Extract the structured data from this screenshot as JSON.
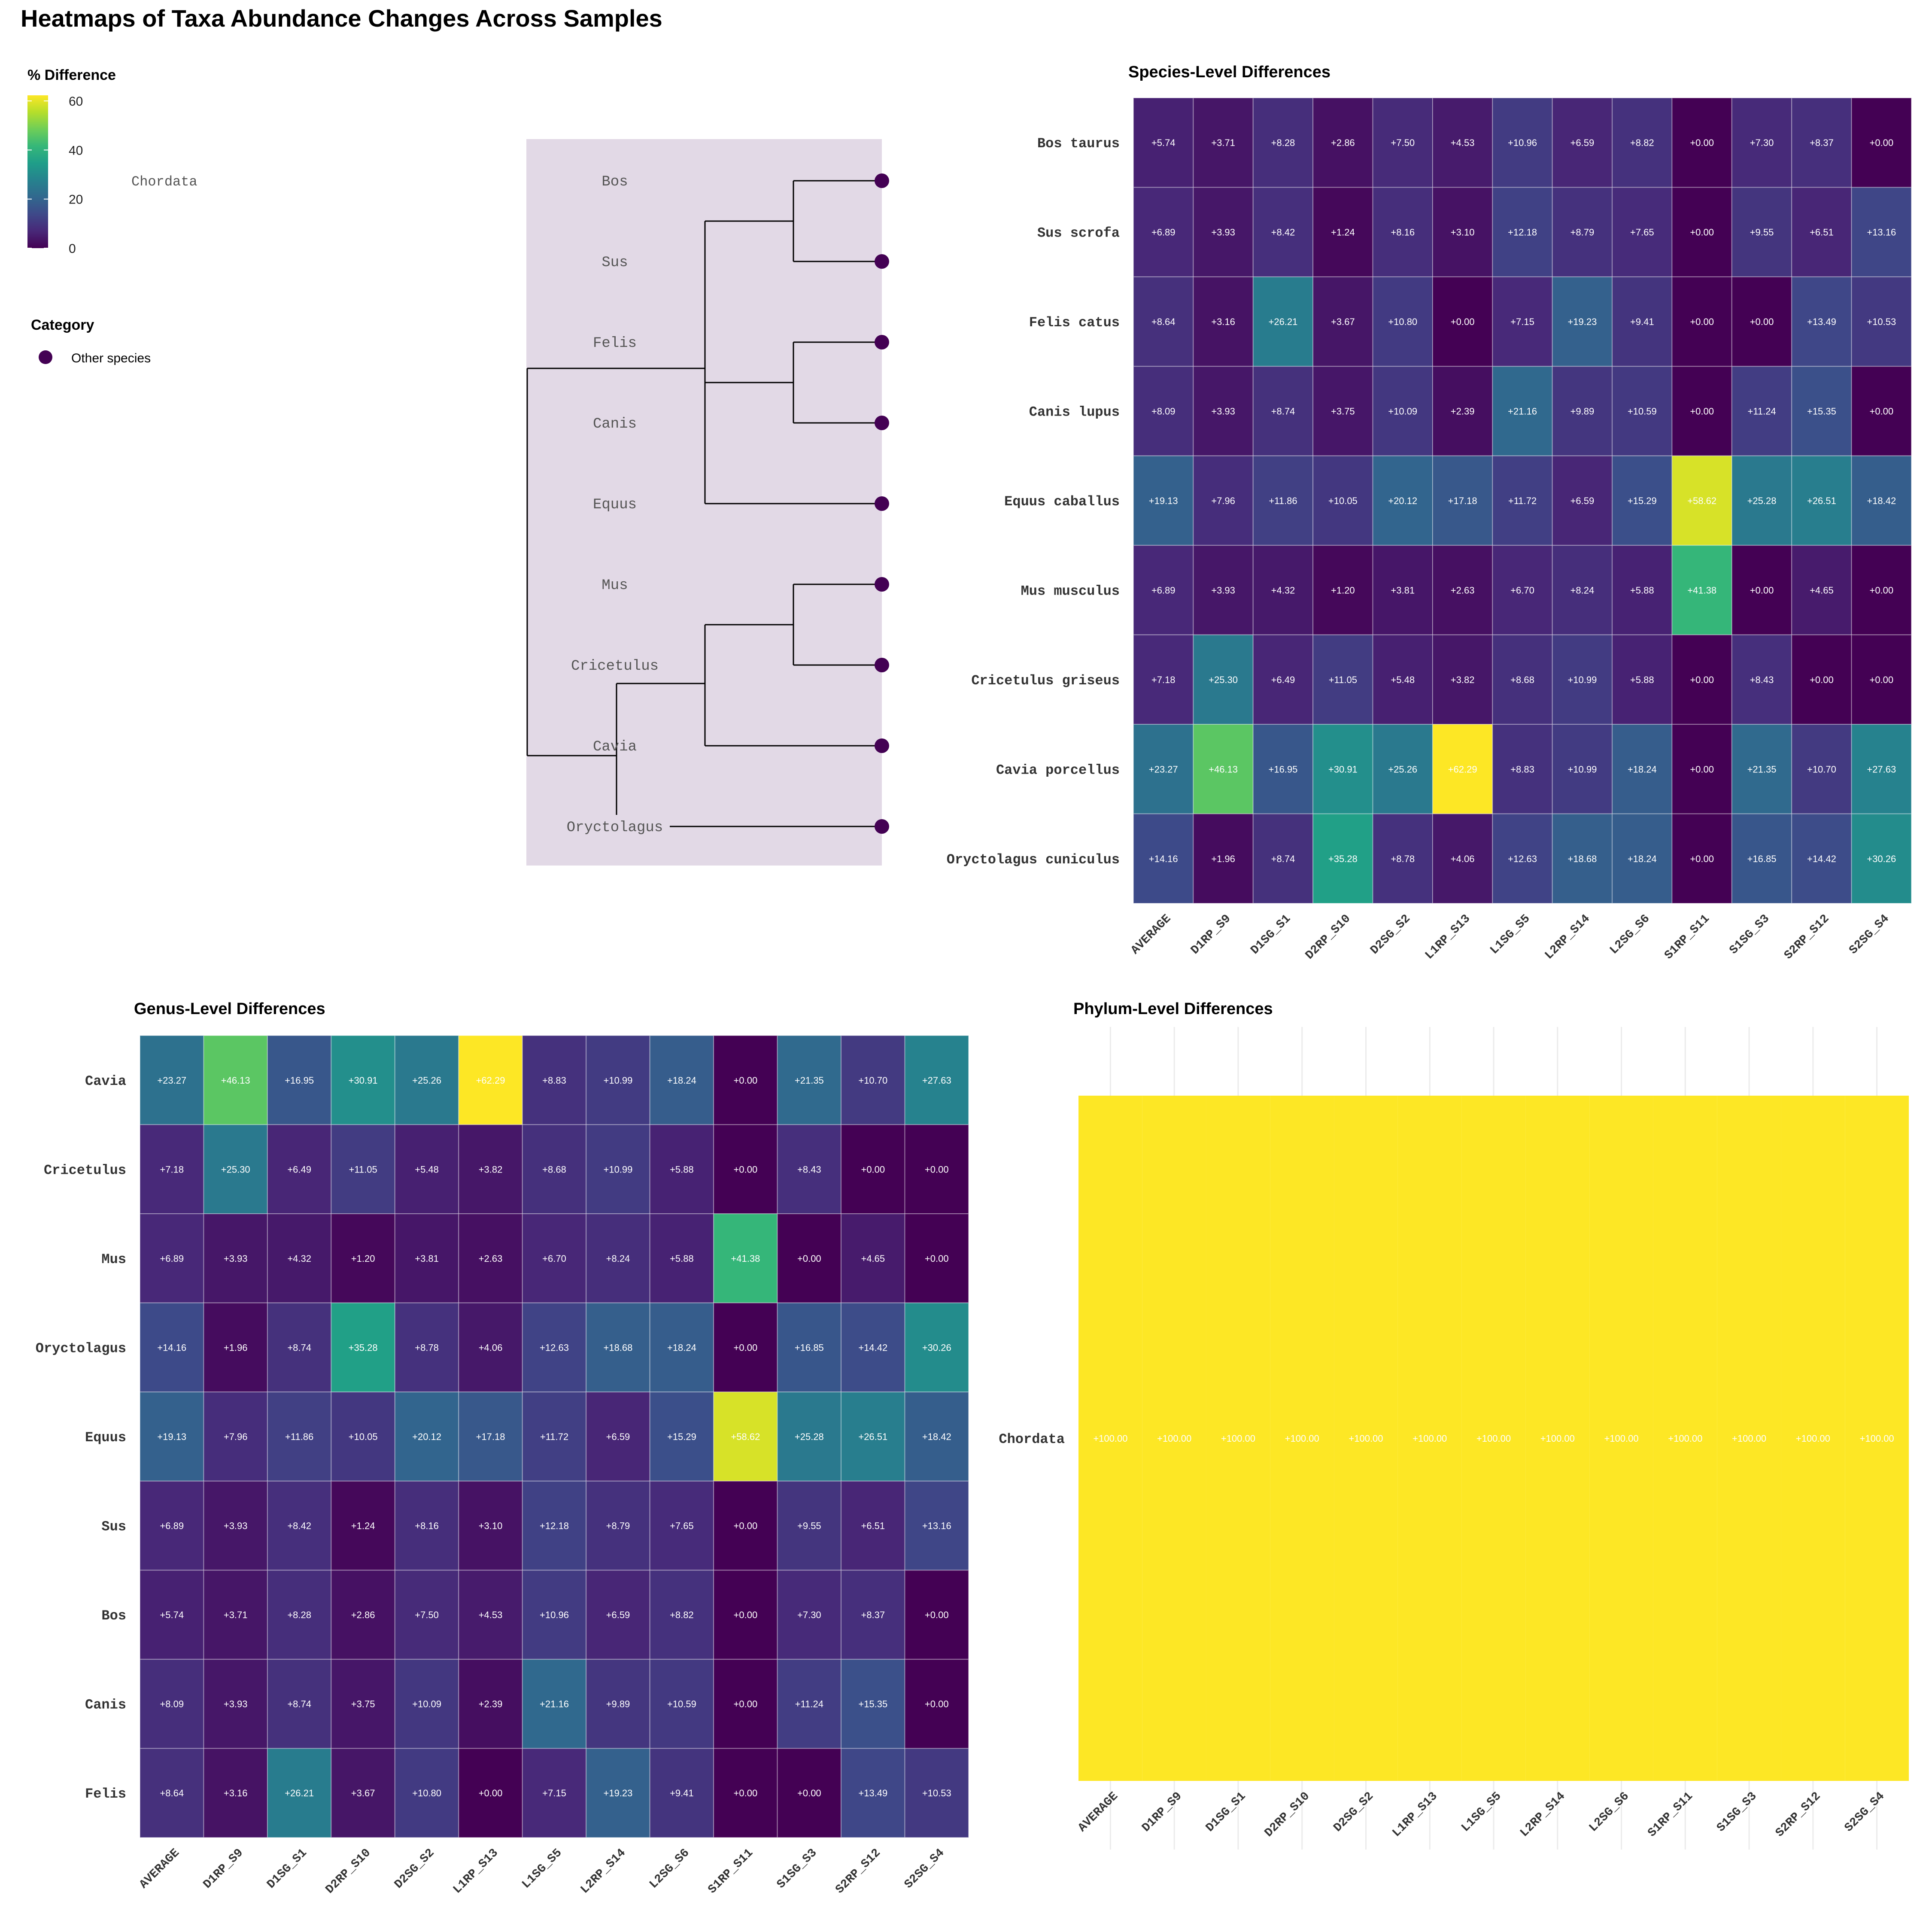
{
  "title": "Heatmaps of Taxa Abundance Changes Across Samples",
  "legend": {
    "colorbar_title": "% Difference",
    "colorbar_ticks": [
      0,
      20,
      40,
      60
    ],
    "colorbar_min": 0,
    "colorbar_max": 62.29,
    "category_title": "Category",
    "category_items": [
      {
        "label": "Other species",
        "color": "#440154"
      }
    ]
  },
  "tree": {
    "clade_label": "Chordata",
    "tips": [
      "Bos",
      "Sus",
      "Felis",
      "Canis",
      "Equus",
      "Mus",
      "Cricetulus",
      "Cavia",
      "Oryctolagus"
    ],
    "panel_color": "#e2d9e6",
    "tip_color": "#440154"
  },
  "colorscale": [
    "#440154",
    "#482878",
    "#3e4989",
    "#31688e",
    "#26828e",
    "#1f9e89",
    "#35b779",
    "#6ece58",
    "#b5de2b",
    "#fde725"
  ],
  "chart_data": [
    {
      "id": "species",
      "type": "heatmap",
      "title": "Species-Level Differences",
      "x": [
        "AVERAGE",
        "D1RP_S9",
        "D1SG_S1",
        "D2RP_S10",
        "D2SG_S2",
        "L1RP_S13",
        "L1SG_S5",
        "L2RP_S14",
        "L2SG_S6",
        "S1RP_S11",
        "S1SG_S3",
        "S2RP_S12",
        "S2SG_S4"
      ],
      "y": [
        "Bos taurus",
        "Sus scrofa",
        "Felis catus",
        "Canis lupus",
        "Equus caballus",
        "Mus musculus",
        "Cricetulus griseus",
        "Cavia porcellus",
        "Oryctolagus cuniculus"
      ],
      "values": [
        [
          5.74,
          3.71,
          8.28,
          2.86,
          7.5,
          4.53,
          10.96,
          6.59,
          8.82,
          0.0,
          7.3,
          8.37,
          0.0
        ],
        [
          6.89,
          3.93,
          8.42,
          1.24,
          8.16,
          3.1,
          12.18,
          8.79,
          7.65,
          0.0,
          9.55,
          6.51,
          13.16
        ],
        [
          8.64,
          3.16,
          26.21,
          3.67,
          10.8,
          0.0,
          7.15,
          19.23,
          9.41,
          0.0,
          0.0,
          13.49,
          10.53
        ],
        [
          8.09,
          3.93,
          8.74,
          3.75,
          10.09,
          2.39,
          21.16,
          9.89,
          10.59,
          0.0,
          11.24,
          15.35,
          0.0
        ],
        [
          19.13,
          7.96,
          11.86,
          10.05,
          20.12,
          17.18,
          11.72,
          6.59,
          15.29,
          58.62,
          25.28,
          26.51,
          18.42
        ],
        [
          6.89,
          3.93,
          4.32,
          1.2,
          3.81,
          2.63,
          6.7,
          8.24,
          5.88,
          41.38,
          0.0,
          4.65,
          0.0
        ],
        [
          7.18,
          25.3,
          6.49,
          11.05,
          5.48,
          3.82,
          8.68,
          10.99,
          5.88,
          0.0,
          8.43,
          0.0,
          0.0
        ],
        [
          23.27,
          46.13,
          16.95,
          30.91,
          25.26,
          62.29,
          8.83,
          10.99,
          18.24,
          0.0,
          21.35,
          10.7,
          27.63
        ],
        [
          14.16,
          1.96,
          8.74,
          35.28,
          8.78,
          4.06,
          12.63,
          18.68,
          18.24,
          0.0,
          16.85,
          14.42,
          30.26
        ]
      ],
      "zlim": [
        0,
        62.29
      ]
    },
    {
      "id": "genus",
      "type": "heatmap",
      "title": "Genus-Level Differences",
      "x": [
        "AVERAGE",
        "D1RP_S9",
        "D1SG_S1",
        "D2RP_S10",
        "D2SG_S2",
        "L1RP_S13",
        "L1SG_S5",
        "L2RP_S14",
        "L2SG_S6",
        "S1RP_S11",
        "S1SG_S3",
        "S2RP_S12",
        "S2SG_S4"
      ],
      "y": [
        "Cavia",
        "Cricetulus",
        "Mus",
        "Oryctolagus",
        "Equus",
        "Sus",
        "Bos",
        "Canis",
        "Felis"
      ],
      "values": [
        [
          23.27,
          46.13,
          16.95,
          30.91,
          25.26,
          62.29,
          8.83,
          10.99,
          18.24,
          0.0,
          21.35,
          10.7,
          27.63
        ],
        [
          7.18,
          25.3,
          6.49,
          11.05,
          5.48,
          3.82,
          8.68,
          10.99,
          5.88,
          0.0,
          8.43,
          0.0,
          0.0
        ],
        [
          6.89,
          3.93,
          4.32,
          1.2,
          3.81,
          2.63,
          6.7,
          8.24,
          5.88,
          41.38,
          0.0,
          4.65,
          0.0
        ],
        [
          14.16,
          1.96,
          8.74,
          35.28,
          8.78,
          4.06,
          12.63,
          18.68,
          18.24,
          0.0,
          16.85,
          14.42,
          30.26
        ],
        [
          19.13,
          7.96,
          11.86,
          10.05,
          20.12,
          17.18,
          11.72,
          6.59,
          15.29,
          58.62,
          25.28,
          26.51,
          18.42
        ],
        [
          6.89,
          3.93,
          8.42,
          1.24,
          8.16,
          3.1,
          12.18,
          8.79,
          7.65,
          0.0,
          9.55,
          6.51,
          13.16
        ],
        [
          5.74,
          3.71,
          8.28,
          2.86,
          7.5,
          4.53,
          10.96,
          6.59,
          8.82,
          0.0,
          7.3,
          8.37,
          0.0
        ],
        [
          8.09,
          3.93,
          8.74,
          3.75,
          10.09,
          2.39,
          21.16,
          9.89,
          10.59,
          0.0,
          11.24,
          15.35,
          0.0
        ],
        [
          8.64,
          3.16,
          26.21,
          3.67,
          10.8,
          0.0,
          7.15,
          19.23,
          9.41,
          0.0,
          0.0,
          13.49,
          10.53
        ]
      ],
      "zlim": [
        0,
        62.29
      ]
    },
    {
      "id": "phylum",
      "type": "heatmap",
      "title": "Phylum-Level Differences",
      "x": [
        "AVERAGE",
        "D1RP_S9",
        "D1SG_S1",
        "D2RP_S10",
        "D2SG_S2",
        "L1RP_S13",
        "L1SG_S5",
        "L2RP_S14",
        "L2SG_S6",
        "S1RP_S11",
        "S1SG_S3",
        "S2RP_S12",
        "S2SG_S4"
      ],
      "y": [
        "Chordata"
      ],
      "values": [
        [
          100.0,
          100.0,
          100.0,
          100.0,
          100.0,
          100.0,
          100.0,
          100.0,
          100.0,
          100.0,
          100.0,
          100.0,
          100.0
        ]
      ],
      "zlim": [
        0,
        100
      ]
    }
  ]
}
